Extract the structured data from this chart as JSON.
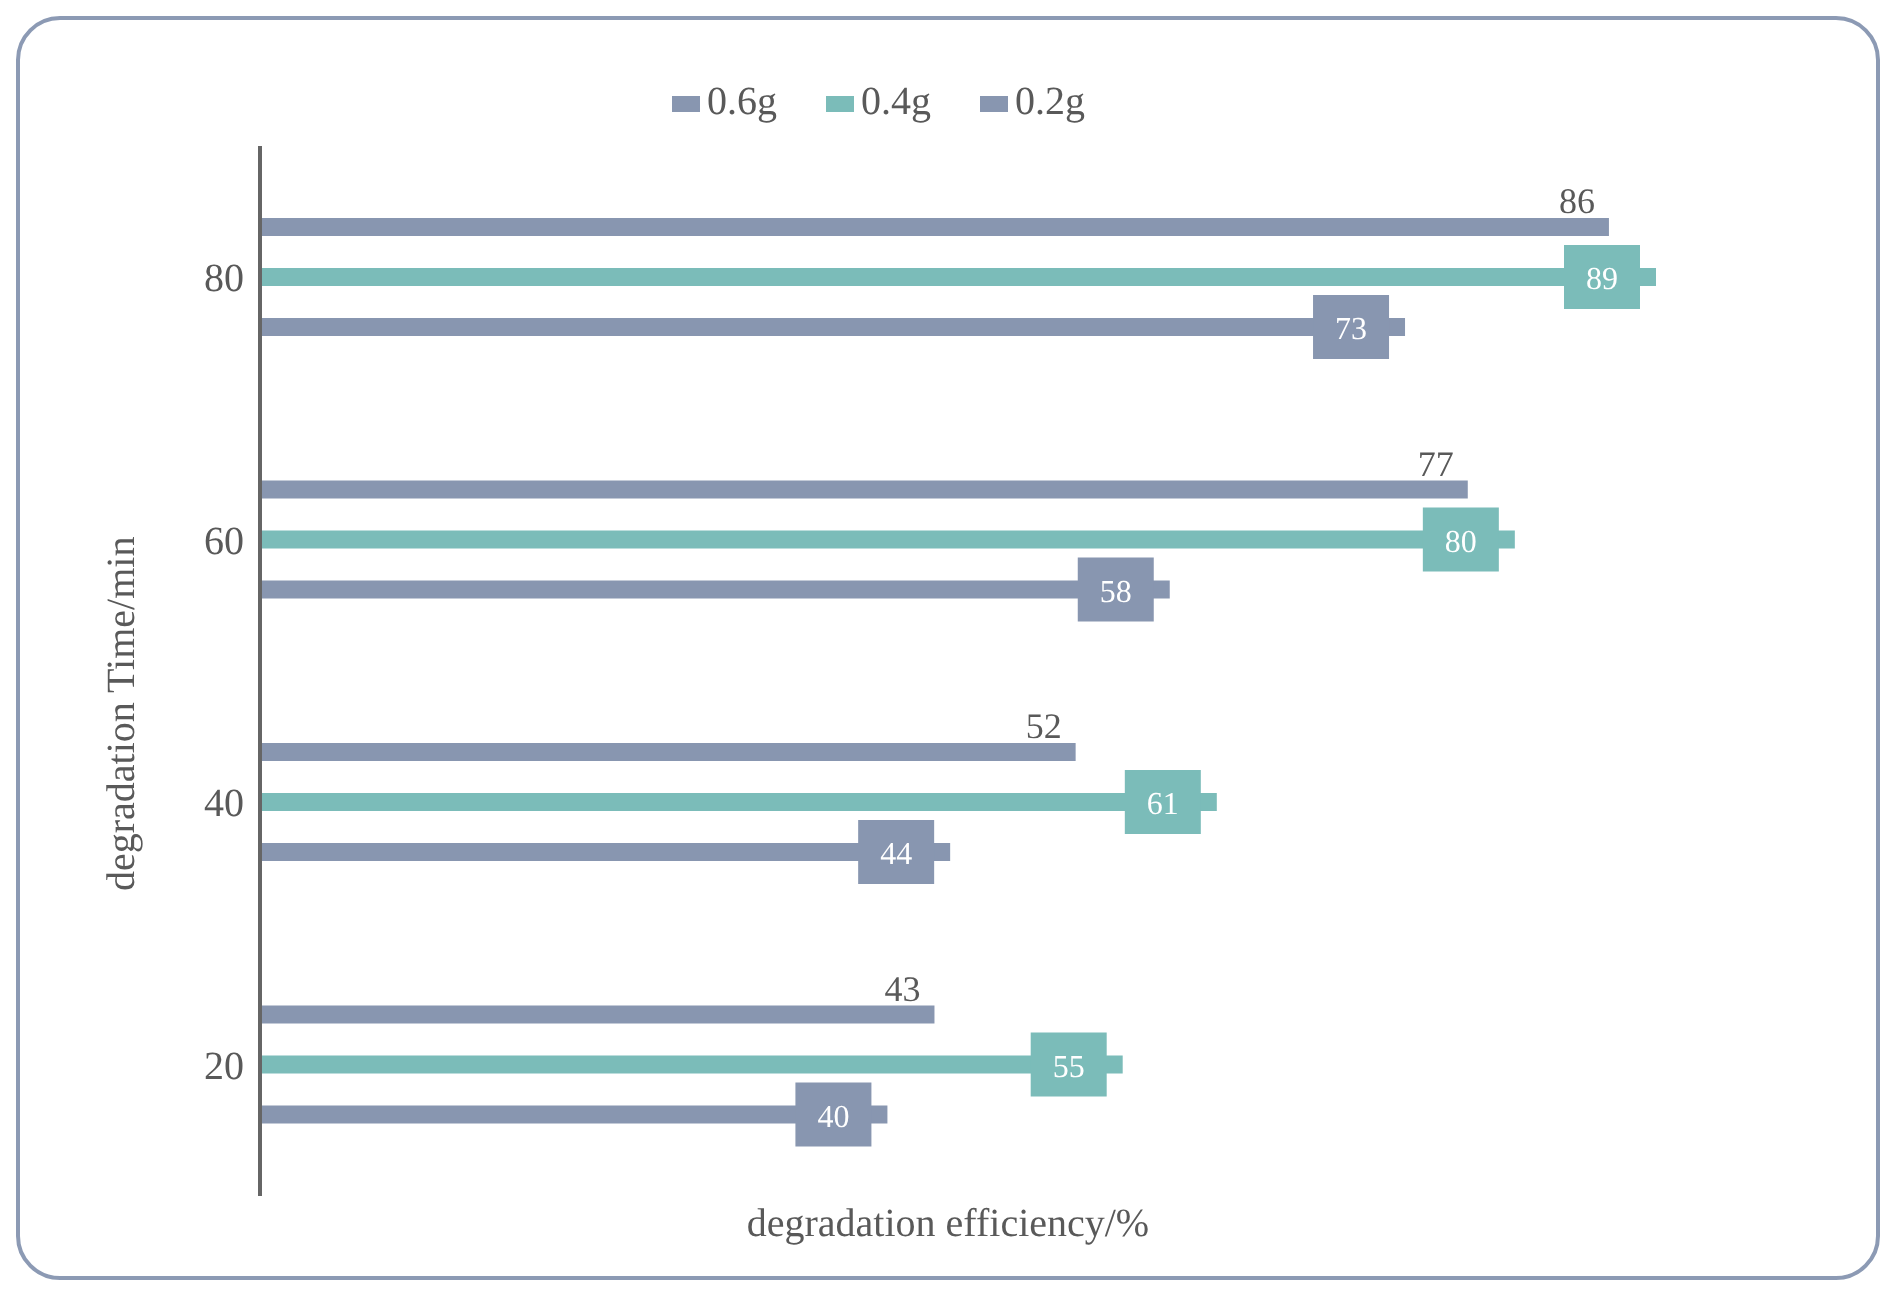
{
  "chart_data": {
    "type": "bar",
    "orientation": "horizontal",
    "xlabel": "degradation efficiency/%",
    "ylabel": "degradation Time/min",
    "categories": [
      "80",
      "60",
      "40",
      "20"
    ],
    "series": [
      {
        "name": "0.6g",
        "color": "#8896b0",
        "values": [
          86,
          77,
          52,
          43
        ]
      },
      {
        "name": "0.4g",
        "color": "#7bbcb9",
        "values": [
          89,
          80,
          61,
          55
        ]
      },
      {
        "name": "0.2g",
        "color": "#8896b0",
        "values": [
          73,
          58,
          44,
          40
        ]
      }
    ],
    "data_labels": true,
    "legend": "top",
    "grid": false
  }
}
